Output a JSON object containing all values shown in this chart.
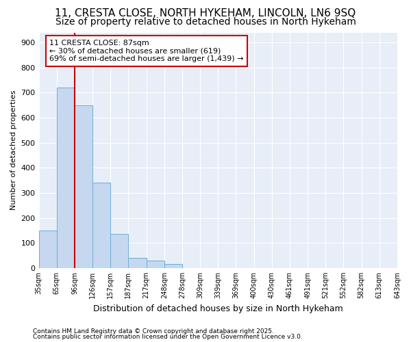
{
  "title1": "11, CRESTA CLOSE, NORTH HYKEHAM, LINCOLN, LN6 9SQ",
  "title2": "Size of property relative to detached houses in North Hykeham",
  "xlabel": "Distribution of detached houses by size in North Hykeham",
  "ylabel": "Number of detached properties",
  "bin_labels": [
    "35sqm",
    "65sqm",
    "96sqm",
    "126sqm",
    "157sqm",
    "187sqm",
    "217sqm",
    "248sqm",
    "278sqm",
    "309sqm",
    "339sqm",
    "369sqm",
    "400sqm",
    "430sqm",
    "461sqm",
    "491sqm",
    "521sqm",
    "552sqm",
    "582sqm",
    "613sqm",
    "643sqm"
  ],
  "bar_heights": [
    150,
    720,
    650,
    340,
    135,
    40,
    30,
    15,
    0,
    0,
    0,
    0,
    0,
    0,
    0,
    0,
    0,
    0,
    0,
    0
  ],
  "bar_color": "#c5d8f0",
  "bar_edge_color": "#6baed6",
  "vline_color": "#cc0000",
  "annotation_text": "11 CRESTA CLOSE: 87sqm\n← 30% of detached houses are smaller (619)\n69% of semi-detached houses are larger (1,439) →",
  "annotation_box_color": "#cc0000",
  "annotation_bg": "#ffffff",
  "ylim": [
    0,
    940
  ],
  "yticks": [
    0,
    100,
    200,
    300,
    400,
    500,
    600,
    700,
    800,
    900
  ],
  "footer1": "Contains HM Land Registry data © Crown copyright and database right 2025.",
  "footer2": "Contains public sector information licensed under the Open Government Licence v3.0.",
  "bg_color": "#ffffff",
  "plot_bg_color": "#e8eef8",
  "grid_color": "#ffffff",
  "title1_fontsize": 11,
  "title2_fontsize": 10,
  "xlabel_fontsize": 9,
  "ylabel_fontsize": 8
}
